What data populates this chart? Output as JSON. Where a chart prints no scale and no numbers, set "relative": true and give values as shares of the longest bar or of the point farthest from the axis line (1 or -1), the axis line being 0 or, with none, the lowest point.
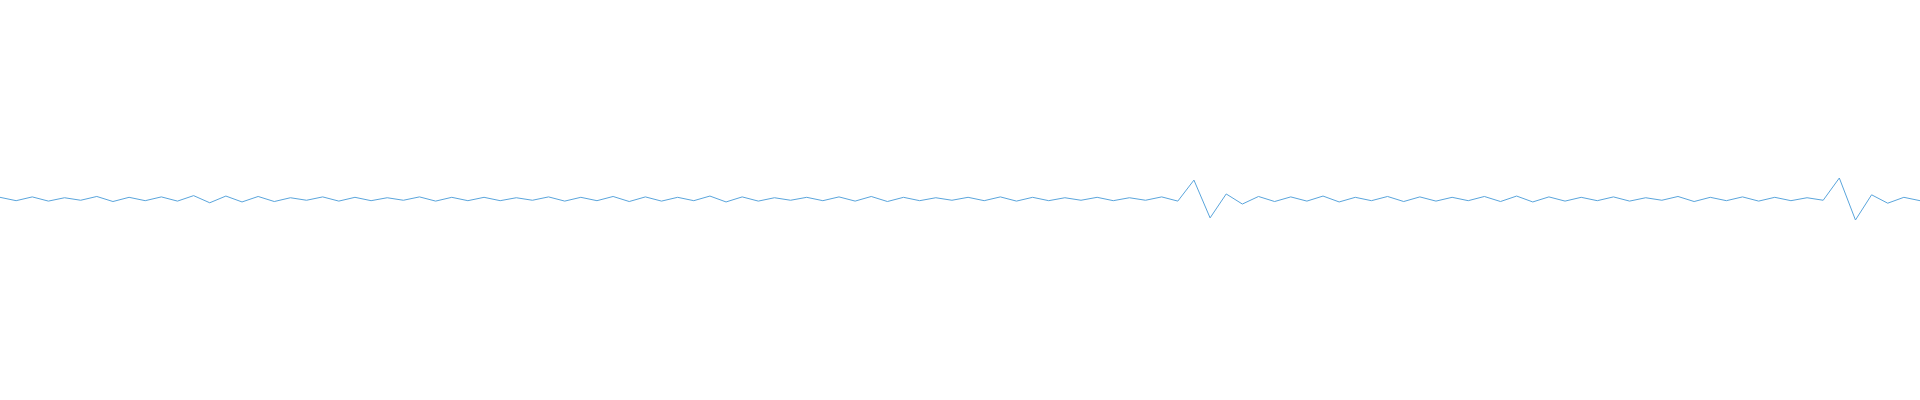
{
  "chart_data": {
    "type": "line",
    "relative": true,
    "categories": [
      null,
      null,
      null,
      null,
      null,
      null,
      null,
      null,
      null,
      null,
      null,
      null,
      null,
      null,
      null,
      null,
      null,
      null,
      null,
      null,
      null,
      null,
      null,
      null,
      null,
      null,
      null,
      null,
      null,
      null,
      null,
      null,
      null,
      null,
      null,
      null,
      null,
      null,
      null,
      null,
      null,
      null,
      null,
      null,
      null,
      null,
      null,
      null,
      null,
      null,
      null,
      null,
      null,
      null,
      null,
      null,
      null,
      null,
      null,
      null,
      null,
      null,
      null,
      null,
      null,
      null,
      null,
      null,
      null,
      null,
      null,
      null,
      null,
      null,
      null,
      null,
      null,
      null,
      null,
      null,
      null,
      null,
      null,
      null,
      null,
      null,
      null,
      null,
      null,
      null,
      null,
      null,
      null,
      null,
      null,
      null,
      null,
      null,
      null,
      null,
      null,
      null,
      null,
      null,
      null,
      null,
      null,
      null,
      null,
      null,
      null,
      null,
      null,
      null,
      null,
      null,
      null,
      null,
      null,
      null
    ],
    "series": [
      {
        "color": "#5aa5dc",
        "values": [
          0.54,
          0.46,
          0.55,
          0.45,
          0.53,
          0.47,
          0.56,
          0.44,
          0.54,
          0.46,
          0.55,
          0.45,
          0.58,
          0.41,
          0.57,
          0.43,
          0.56,
          0.44,
          0.53,
          0.47,
          0.55,
          0.45,
          0.54,
          0.46,
          0.53,
          0.47,
          0.55,
          0.45,
          0.54,
          0.46,
          0.54,
          0.46,
          0.53,
          0.47,
          0.55,
          0.45,
          0.54,
          0.46,
          0.56,
          0.44,
          0.55,
          0.45,
          0.54,
          0.46,
          0.57,
          0.43,
          0.55,
          0.45,
          0.53,
          0.47,
          0.54,
          0.46,
          0.55,
          0.45,
          0.56,
          0.44,
          0.54,
          0.46,
          0.53,
          0.47,
          0.54,
          0.46,
          0.55,
          0.45,
          0.54,
          0.46,
          0.53,
          0.47,
          0.54,
          0.46,
          0.53,
          0.47,
          0.55,
          0.45,
          0.95,
          0.05,
          0.62,
          0.38,
          0.56,
          0.44,
          0.55,
          0.45,
          0.57,
          0.43,
          0.54,
          0.46,
          0.56,
          0.44,
          0.55,
          0.45,
          0.54,
          0.46,
          0.56,
          0.44,
          0.57,
          0.43,
          0.55,
          0.45,
          0.54,
          0.46,
          0.55,
          0.45,
          0.53,
          0.47,
          0.56,
          0.44,
          0.54,
          0.46,
          0.55,
          0.45,
          0.54,
          0.46,
          0.53,
          0.47,
          1,
          0,
          0.6,
          0.4,
          0.54,
          0.46
        ]
      }
    ]
  }
}
